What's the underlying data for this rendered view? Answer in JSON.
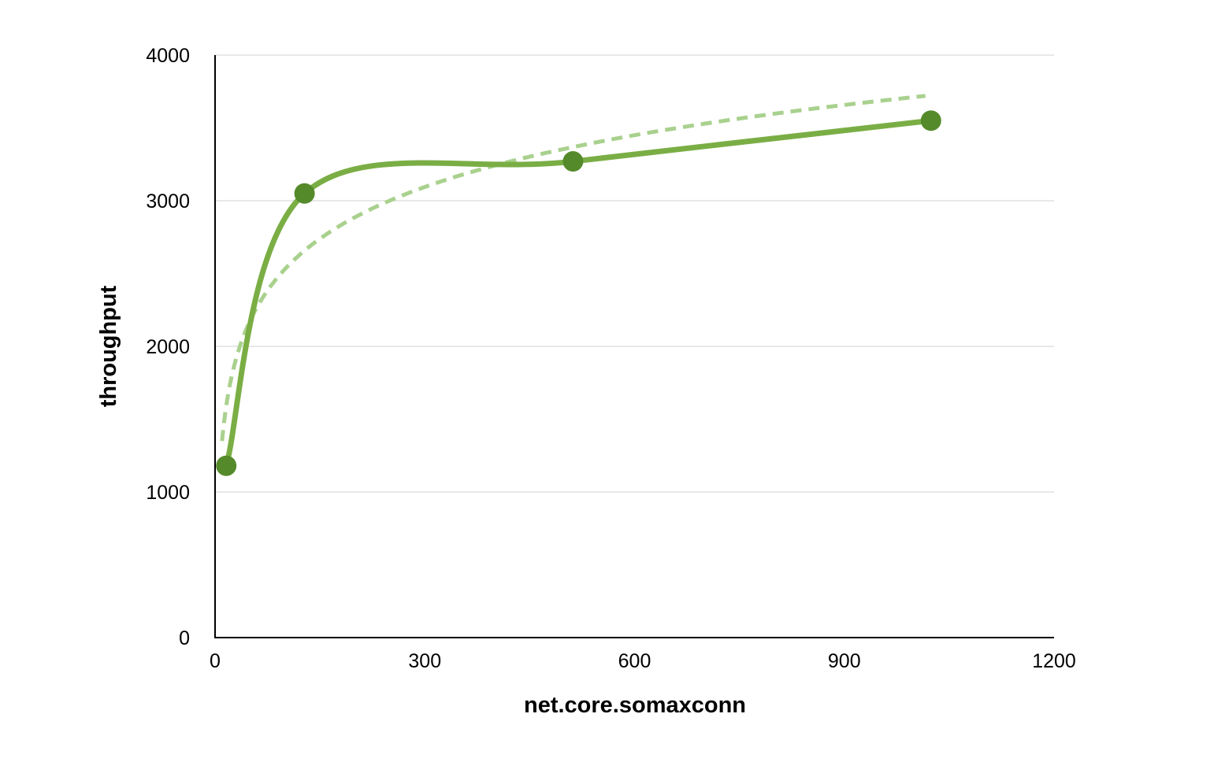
{
  "chart_data": {
    "type": "line",
    "title": "",
    "xlabel": "net.core.somaxconn",
    "ylabel": "throughput",
    "xlim": [
      0,
      1200
    ],
    "ylim": [
      0,
      4000
    ],
    "x_ticks": [
      0,
      300,
      600,
      900,
      1200
    ],
    "y_ticks": [
      0,
      1000,
      2000,
      3000,
      4000
    ],
    "x_tick_labels": [
      "0",
      "300",
      "600",
      "900",
      "1200"
    ],
    "y_tick_labels": [
      "0",
      "1000",
      "2000",
      "3000",
      "4000"
    ],
    "grid": "horizontal",
    "legend": "none",
    "series": [
      {
        "x": [
          16,
          128,
          512,
          1024
        ],
        "y": [
          1180,
          3050,
          3270,
          3550
        ],
        "style": "smoothed line with markers",
        "color": "#7aae45",
        "marker_color": "#558a2a"
      }
    ],
    "trendline": {
      "type": "logarithmic",
      "style": "dashed",
      "color": "#a9d18e",
      "x_range": [
        10,
        1016
      ],
      "y_start": 1350,
      "y_end": 3720
    }
  }
}
